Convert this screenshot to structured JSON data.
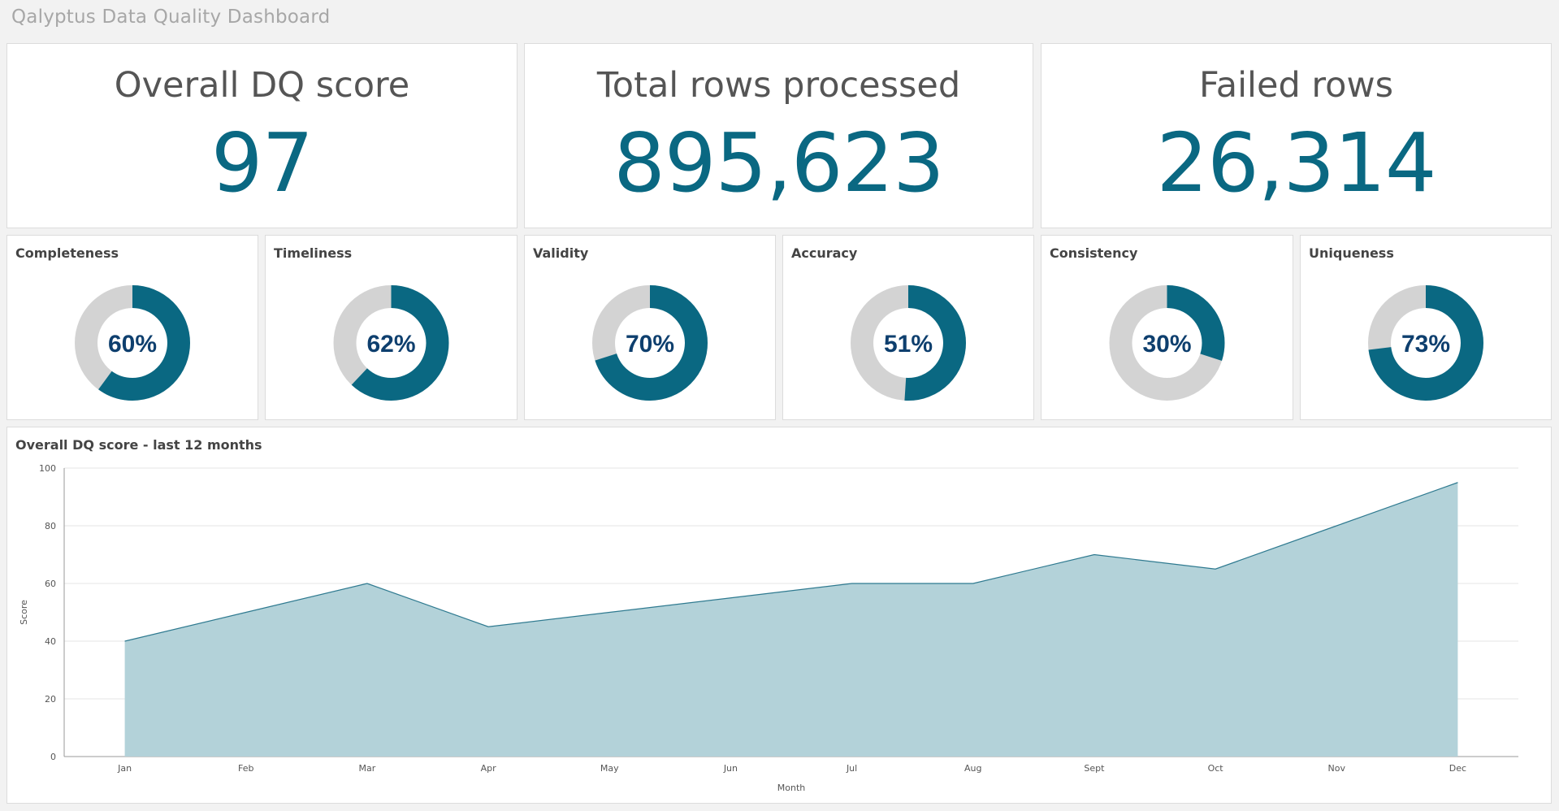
{
  "header": {
    "title": "Qalyptus Data Quality Dashboard"
  },
  "kpis": [
    {
      "title": "Overall DQ score",
      "value": "97"
    },
    {
      "title": "Total rows processed",
      "value": "895,623"
    },
    {
      "title": "Failed rows",
      "value": "26,314"
    }
  ],
  "donuts": [
    {
      "title": "Completeness",
      "value": 60,
      "label": "60%"
    },
    {
      "title": "Timeliness",
      "value": 62,
      "label": "62%"
    },
    {
      "title": "Validity",
      "value": 70,
      "label": "70%"
    },
    {
      "title": "Accuracy",
      "value": 51,
      "label": "51%"
    },
    {
      "title": "Consistency",
      "value": 30,
      "label": "30%"
    },
    {
      "title": "Uniqueness",
      "value": 73,
      "label": "73%"
    }
  ],
  "colors": {
    "accent": "#0a6882",
    "track": "#d3d3d3",
    "area_fill": "#b3d2d9",
    "donut_text": "#0e3f6e"
  },
  "chart_data": {
    "type": "area",
    "title": "Overall DQ score - last 12 months",
    "xlabel": "Month",
    "ylabel": "Score",
    "categories": [
      "Jan",
      "Feb",
      "Mar",
      "Apr",
      "May",
      "Jun",
      "Jul",
      "Aug",
      "Sept",
      "Oct",
      "Nov",
      "Dec"
    ],
    "values": [
      40,
      50,
      60,
      45,
      50,
      55,
      60,
      60,
      70,
      65,
      80,
      95
    ],
    "ylim": [
      0,
      100
    ],
    "yticks": [
      0,
      20,
      40,
      60,
      80,
      100
    ],
    "grid": true
  }
}
